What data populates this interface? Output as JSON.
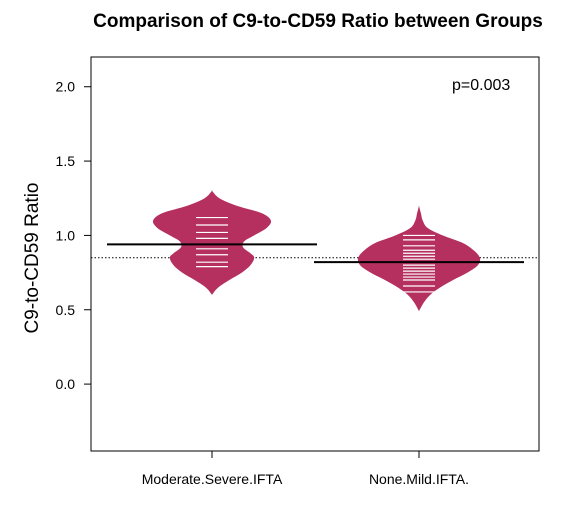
{
  "chart_data": {
    "type": "beanplot",
    "title": "Comparison of C9-to-CD59 Ratio between Groups",
    "xlabel": "",
    "ylabel": "C9-to-CD59 Ratio",
    "ylim": [
      -0.45,
      2.2
    ],
    "yticks": [
      0.0,
      0.5,
      1.0,
      1.5,
      2.0
    ],
    "ytick_labels": [
      "0.0",
      "0.5",
      "1.0",
      "1.5",
      "2.0"
    ],
    "categories": [
      "Moderate.Severe.IFTA",
      "None.Mild.IFTA."
    ],
    "overall_mean": 0.85,
    "annotation": "p=0.003",
    "bean_color": "#b5305f",
    "groups": [
      {
        "category": "Moderate.Severe.IFTA",
        "mean": 0.94,
        "range": [
          0.6,
          1.3
        ],
        "density": [
          [
            0.6,
            0.0
          ],
          [
            0.65,
            0.1
          ],
          [
            0.7,
            0.28
          ],
          [
            0.75,
            0.48
          ],
          [
            0.8,
            0.62
          ],
          [
            0.85,
            0.68
          ],
          [
            0.88,
            0.62
          ],
          [
            0.92,
            0.5
          ],
          [
            0.96,
            0.52
          ],
          [
            1.0,
            0.68
          ],
          [
            1.05,
            0.88
          ],
          [
            1.1,
            0.95
          ],
          [
            1.15,
            0.8
          ],
          [
            1.2,
            0.4
          ],
          [
            1.25,
            0.12
          ],
          [
            1.3,
            0.0
          ]
        ],
        "points": [
          0.79,
          0.82,
          0.87,
          0.91,
          0.98,
          1.02,
          1.07,
          1.12
        ]
      },
      {
        "category": "None.Mild.IFTA.",
        "mean": 0.82,
        "range": [
          0.49,
          1.2
        ],
        "density": [
          [
            0.49,
            0.0
          ],
          [
            0.55,
            0.08
          ],
          [
            0.6,
            0.18
          ],
          [
            0.65,
            0.34
          ],
          [
            0.7,
            0.55
          ],
          [
            0.75,
            0.78
          ],
          [
            0.8,
            0.95
          ],
          [
            0.85,
            0.98
          ],
          [
            0.9,
            0.88
          ],
          [
            0.95,
            0.7
          ],
          [
            1.0,
            0.38
          ],
          [
            1.05,
            0.14
          ],
          [
            1.1,
            0.06
          ],
          [
            1.15,
            0.03
          ],
          [
            1.2,
            0.0
          ]
        ],
        "points": [
          0.62,
          0.66,
          0.7,
          0.72,
          0.74,
          0.76,
          0.78,
          0.8,
          0.82,
          0.84,
          0.86,
          0.88,
          0.9,
          0.93,
          0.97,
          1.0
        ]
      }
    ]
  }
}
